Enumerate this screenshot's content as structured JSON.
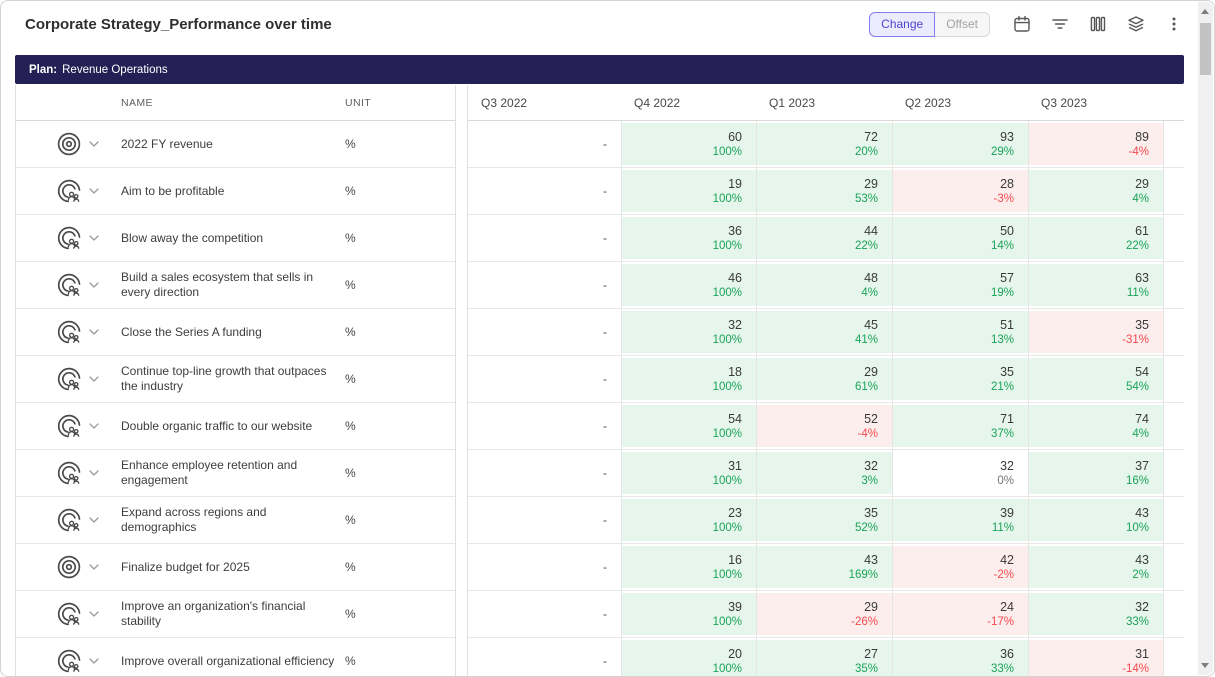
{
  "header": {
    "title": "Corporate Strategy_Performance over time",
    "view_toggle": [
      {
        "label": "Change",
        "active": true
      },
      {
        "label": "Offset",
        "active": false
      }
    ],
    "toolbar_icons": [
      "calendar-icon",
      "filter-icon",
      "columns-icon",
      "layers-icon",
      "kebab-menu-icon"
    ]
  },
  "plan_bar": {
    "label": "Plan:",
    "value": "Revenue Operations"
  },
  "table": {
    "headers": {
      "name": "NAME",
      "unit": "UNIT"
    },
    "periods": [
      "Q3 2022",
      "Q4 2022",
      "Q1 2023",
      "Q2 2023",
      "Q3 2023"
    ],
    "rows": [
      {
        "icon": "target-icon",
        "name": "2022 FY revenue",
        "unit": "%",
        "cells": [
          {
            "value": "-",
            "change": "",
            "status": "empty"
          },
          {
            "value": "60",
            "change": "100%",
            "status": "positive"
          },
          {
            "value": "72",
            "change": "20%",
            "status": "positive"
          },
          {
            "value": "93",
            "change": "29%",
            "status": "positive"
          },
          {
            "value": "89",
            "change": "-4%",
            "status": "negative"
          }
        ]
      },
      {
        "icon": "target-people-icon",
        "name": "Aim to be profitable",
        "unit": "%",
        "cells": [
          {
            "value": "-",
            "change": "",
            "status": "empty"
          },
          {
            "value": "19",
            "change": "100%",
            "status": "positive"
          },
          {
            "value": "29",
            "change": "53%",
            "status": "positive"
          },
          {
            "value": "28",
            "change": "-3%",
            "status": "negative"
          },
          {
            "value": "29",
            "change": "4%",
            "status": "positive"
          }
        ]
      },
      {
        "icon": "target-people-icon",
        "name": "Blow away the competition",
        "unit": "%",
        "cells": [
          {
            "value": "-",
            "change": "",
            "status": "empty"
          },
          {
            "value": "36",
            "change": "100%",
            "status": "positive"
          },
          {
            "value": "44",
            "change": "22%",
            "status": "positive"
          },
          {
            "value": "50",
            "change": "14%",
            "status": "positive"
          },
          {
            "value": "61",
            "change": "22%",
            "status": "positive"
          }
        ]
      },
      {
        "icon": "target-people-icon",
        "name": "Build a sales ecosystem that sells in every direction",
        "unit": "%",
        "cells": [
          {
            "value": "-",
            "change": "",
            "status": "empty"
          },
          {
            "value": "46",
            "change": "100%",
            "status": "positive"
          },
          {
            "value": "48",
            "change": "4%",
            "status": "positive"
          },
          {
            "value": "57",
            "change": "19%",
            "status": "positive"
          },
          {
            "value": "63",
            "change": "11%",
            "status": "positive"
          }
        ]
      },
      {
        "icon": "target-people-icon",
        "name": "Close the Series A funding",
        "unit": "%",
        "cells": [
          {
            "value": "-",
            "change": "",
            "status": "empty"
          },
          {
            "value": "32",
            "change": "100%",
            "status": "positive"
          },
          {
            "value": "45",
            "change": "41%",
            "status": "positive"
          },
          {
            "value": "51",
            "change": "13%",
            "status": "positive"
          },
          {
            "value": "35",
            "change": "-31%",
            "status": "negative"
          }
        ]
      },
      {
        "icon": "target-people-icon",
        "name": "Continue top-line growth that outpaces the industry",
        "unit": "%",
        "cells": [
          {
            "value": "-",
            "change": "",
            "status": "empty"
          },
          {
            "value": "18",
            "change": "100%",
            "status": "positive"
          },
          {
            "value": "29",
            "change": "61%",
            "status": "positive"
          },
          {
            "value": "35",
            "change": "21%",
            "status": "positive"
          },
          {
            "value": "54",
            "change": "54%",
            "status": "positive"
          }
        ]
      },
      {
        "icon": "target-people-icon",
        "name": "Double organic traffic to our website",
        "unit": "%",
        "cells": [
          {
            "value": "-",
            "change": "",
            "status": "empty"
          },
          {
            "value": "54",
            "change": "100%",
            "status": "positive"
          },
          {
            "value": "52",
            "change": "-4%",
            "status": "negative"
          },
          {
            "value": "71",
            "change": "37%",
            "status": "positive"
          },
          {
            "value": "74",
            "change": "4%",
            "status": "positive"
          }
        ]
      },
      {
        "icon": "target-people-icon",
        "name": "Enhance employee retention and engagement",
        "unit": "%",
        "cells": [
          {
            "value": "-",
            "change": "",
            "status": "empty"
          },
          {
            "value": "31",
            "change": "100%",
            "status": "positive"
          },
          {
            "value": "32",
            "change": "3%",
            "status": "positive"
          },
          {
            "value": "32",
            "change": "0%",
            "status": "neutral"
          },
          {
            "value": "37",
            "change": "16%",
            "status": "positive"
          }
        ]
      },
      {
        "icon": "target-people-icon",
        "name": "Expand across regions and demographics",
        "unit": "%",
        "cells": [
          {
            "value": "-",
            "change": "",
            "status": "empty"
          },
          {
            "value": "23",
            "change": "100%",
            "status": "positive"
          },
          {
            "value": "35",
            "change": "52%",
            "status": "positive"
          },
          {
            "value": "39",
            "change": "11%",
            "status": "positive"
          },
          {
            "value": "43",
            "change": "10%",
            "status": "positive"
          }
        ]
      },
      {
        "icon": "target-icon",
        "name": "Finalize budget for 2025",
        "unit": "%",
        "cells": [
          {
            "value": "-",
            "change": "",
            "status": "empty"
          },
          {
            "value": "16",
            "change": "100%",
            "status": "positive"
          },
          {
            "value": "43",
            "change": "169%",
            "status": "positive"
          },
          {
            "value": "42",
            "change": "-2%",
            "status": "negative"
          },
          {
            "value": "43",
            "change": "2%",
            "status": "positive"
          }
        ]
      },
      {
        "icon": "target-people-icon",
        "name": "Improve an organization's financial stability",
        "unit": "%",
        "cells": [
          {
            "value": "-",
            "change": "",
            "status": "empty"
          },
          {
            "value": "39",
            "change": "100%",
            "status": "positive"
          },
          {
            "value": "29",
            "change": "-26%",
            "status": "negative"
          },
          {
            "value": "24",
            "change": "-17%",
            "status": "negative"
          },
          {
            "value": "32",
            "change": "33%",
            "status": "positive"
          }
        ]
      },
      {
        "icon": "target-people-icon",
        "name": "Improve overall organizational efficiency",
        "unit": "%",
        "cells": [
          {
            "value": "-",
            "change": "",
            "status": "empty"
          },
          {
            "value": "20",
            "change": "100%",
            "status": "positive"
          },
          {
            "value": "27",
            "change": "35%",
            "status": "positive"
          },
          {
            "value": "36",
            "change": "33%",
            "status": "positive"
          },
          {
            "value": "31",
            "change": "-14%",
            "status": "negative"
          }
        ]
      }
    ]
  },
  "colors": {
    "positive_text": "#19a356",
    "negative_text": "#f4494e",
    "positive_bg": "#e7f6ed",
    "negative_bg": "#fdeeee",
    "plan_bar_bg": "#241f54",
    "accent": "#867df2"
  }
}
